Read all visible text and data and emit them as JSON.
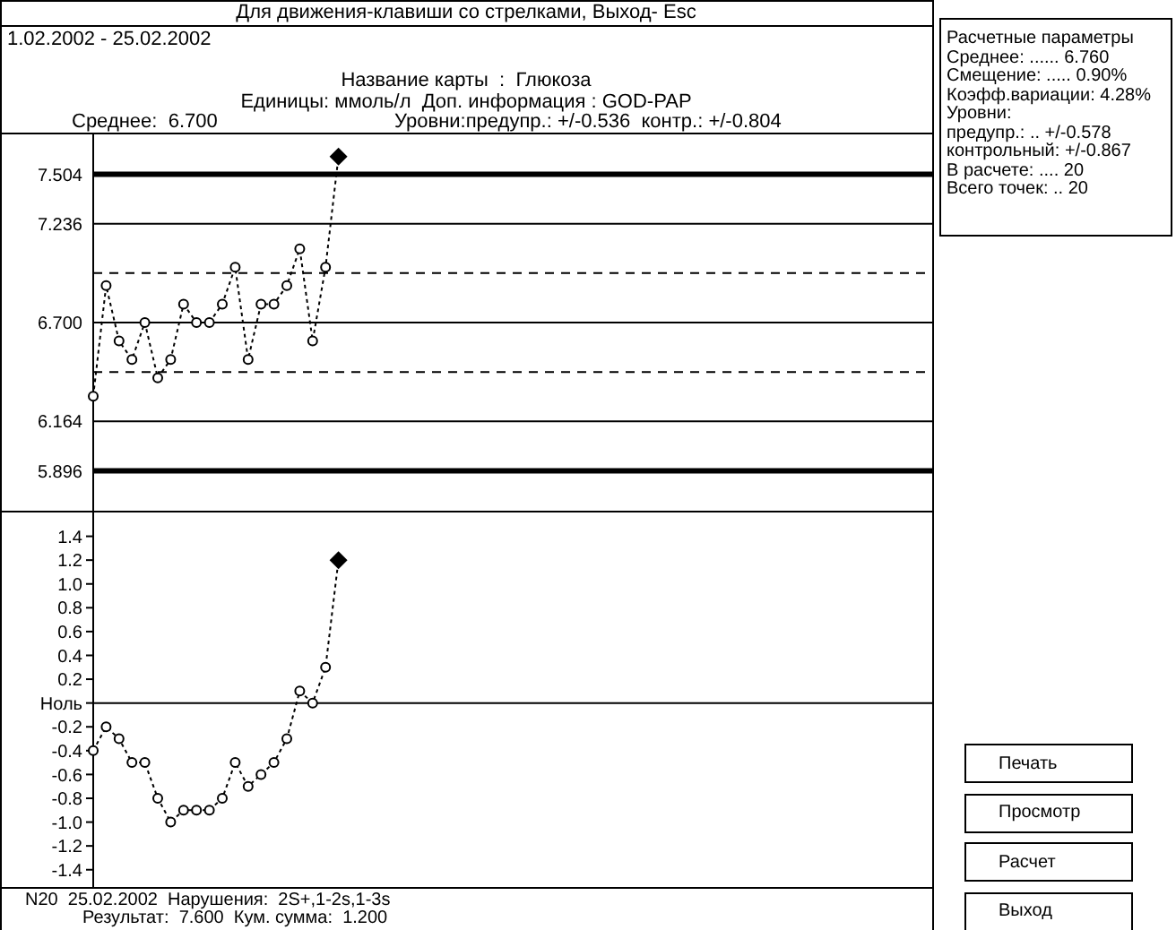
{
  "chart_data": [
    {
      "type": "line",
      "title": "Для движения-клавиши со стрелками, Выход- Esc",
      "annotations": [
        "1.02.2002 - 25.02.2002",
        "Название карты  :  Глюкоза",
        "Единицы: ммоль/л  Доп. информация : GOD-PAP",
        "Среднее:  6.700",
        "Уровни:предупр.: +/-0.536  контр.: +/-0.804",
        "Расчетные параметры",
        "Среднее: ...... 6.760",
        "Смещение: ..... 0.90%",
        "Коэфф.вариации: 4.28%",
        "Уровни:",
        "предупр.: .. +/-0.578",
        "контрольный: +/-0.867",
        "В расчете: .... 20",
        "Всего точек: .. 20",
        "Печать",
        "Просмотр",
        "Расчет",
        "Выход"
      ],
      "categories": [
        null,
        null,
        null,
        null,
        null,
        null,
        null,
        null,
        null,
        null,
        null,
        null,
        null,
        null,
        null,
        null,
        null,
        null,
        null,
        null,
        null,
        null,
        null,
        null,
        null,
        null,
        null,
        null,
        null,
        null,
        null,
        null,
        null,
        null,
        null,
        null,
        null,
        null,
        null,
        null,
        null,
        null,
        null,
        null,
        null,
        null,
        null,
        null,
        null,
        null,
        null,
        null,
        null,
        null,
        null,
        null,
        null,
        null,
        null,
        null,
        null,
        null,
        null,
        null,
        null,
        null
      ],
      "ylim": [
        5.68,
        7.72
      ],
      "yticks": [
        7.504,
        7.236,
        {
          "value": 6.7,
          "label": "6.700"
        },
        6.164,
        5.896
      ],
      "tick_labels": "y",
      "marker": "circle",
      "line_style": "dotted",
      "series": [
        {
          "color": "#000000",
          "values": [
            6.3,
            6.9,
            6.6,
            6.5,
            6.7,
            6.4,
            6.5,
            6.8,
            6.7,
            6.7,
            6.8,
            7.0,
            6.5,
            6.8,
            6.8,
            6.9,
            7.1,
            6.6,
            7.0,
            7.6,
            null,
            null,
            null,
            null,
            null,
            null,
            null,
            null,
            null,
            null,
            null,
            null,
            null,
            null,
            null,
            null,
            null,
            null,
            null,
            null,
            null,
            null,
            null,
            null,
            null,
            null,
            null,
            null,
            null,
            null,
            null,
            null,
            null,
            null,
            null,
            null,
            null,
            null,
            null,
            null,
            null,
            null,
            null,
            null,
            null,
            null
          ]
        }
      ],
      "ref_lines": [
        {
          "axis": "y",
          "value": 7.504
        },
        {
          "axis": "y",
          "value": 7.236
        },
        {
          "axis": "y",
          "value": 6.968,
          "line_style": "dashed"
        },
        {
          "axis": "y",
          "value": 6.7
        },
        {
          "axis": "y",
          "value": 6.432,
          "line_style": "dashed"
        },
        {
          "axis": "y",
          "value": 6.164
        },
        {
          "axis": "y",
          "value": 5.896
        }
      ]
    },
    {
      "type": "line",
      "annotations": [
        "N20  25.02.2002  Нарушения:  2S+,1-2s,1-3s",
        "Результат:  7.600  Кум. сумма:  1.200"
      ],
      "categories": [
        null,
        null,
        null,
        null,
        null,
        null,
        null,
        null,
        null,
        null,
        null,
        null,
        null,
        null,
        null,
        null,
        null,
        null,
        null,
        null,
        null,
        null,
        null,
        null,
        null,
        null,
        null,
        null,
        null,
        null,
        null,
        null,
        null,
        null,
        null,
        null,
        null,
        null,
        null,
        null,
        null,
        null,
        null,
        null,
        null,
        null,
        null,
        null,
        null,
        null,
        null,
        null,
        null,
        null,
        null,
        null,
        null,
        null,
        null,
        null,
        null,
        null,
        null,
        null,
        null,
        null
      ],
      "ylim": [
        -1.56,
        1.6
      ],
      "yticks": [
        1.4,
        1.2,
        {
          "value": 1,
          "label": "1.0"
        },
        0.8,
        0.6,
        0.4,
        0.2,
        {
          "value": 0,
          "label": "Ноль"
        },
        -0.2,
        -0.4,
        -0.6,
        -0.8,
        {
          "value": -1,
          "label": "-1.0"
        },
        -1.2,
        -1.4
      ],
      "tick_labels": "y",
      "marker": "circle",
      "line_style": "dotted",
      "series": [
        {
          "color": "#000000",
          "values": [
            -0.4,
            -0.2,
            -0.3,
            -0.5,
            -0.5,
            -0.8,
            -1.0,
            -0.9,
            -0.9,
            -0.9,
            -0.8,
            -0.5,
            -0.7,
            -0.6,
            -0.5,
            -0.3,
            0.1,
            0.0,
            0.3,
            1.2,
            null,
            null,
            null,
            null,
            null,
            null,
            null,
            null,
            null,
            null,
            null,
            null,
            null,
            null,
            null,
            null,
            null,
            null,
            null,
            null,
            null,
            null,
            null,
            null,
            null,
            null,
            null,
            null,
            null,
            null,
            null,
            null,
            null,
            null,
            null,
            null,
            null,
            null,
            null,
            null,
            null,
            null,
            null,
            null,
            null,
            null
          ]
        }
      ],
      "ref_lines": [
        {
          "axis": "y",
          "value": 0
        }
      ]
    }
  ]
}
